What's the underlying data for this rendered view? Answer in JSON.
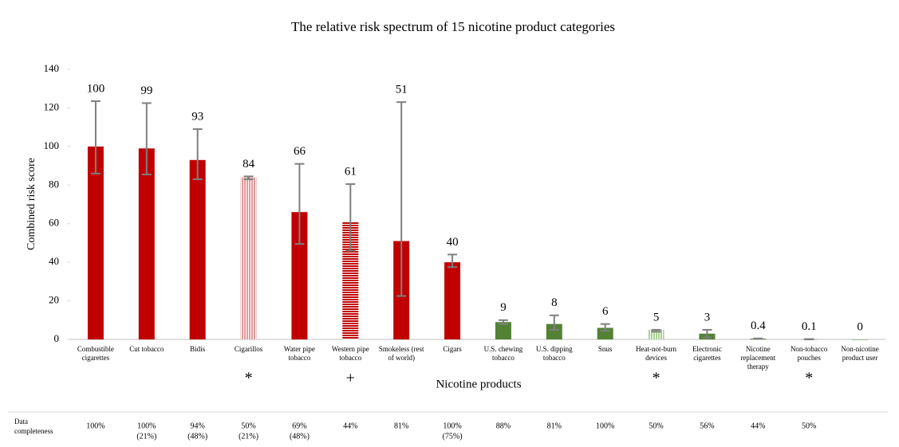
{
  "chart_data": {
    "type": "bar",
    "title": "The relative risk spectrum of 15 nicotine product categories",
    "x_label": "Nicotine products",
    "y_label": "Combined risk score",
    "categories": [
      "Combustible cigarettes",
      "Cut tobacco",
      "Bidis",
      "Cigarillos",
      "Water pipe tobacco",
      "Western pipe tobacco",
      "Smokeless (rest of world)",
      "Cigars",
      "U.S. chewing tobacco",
      "U.S. dipping tobacco",
      "Snus",
      "Heat-not-burn devices",
      "Electronic cigarettes",
      "Nicotine replacement therapy",
      "Non-tobacco pouches",
      "Non-nicotine product user"
    ],
    "values": [
      100,
      99,
      93,
      84,
      66,
      61,
      51,
      40,
      9,
      8,
      6,
      5,
      3,
      0.4,
      0.1,
      0
    ],
    "error_low": [
      86,
      85.5,
      83,
      83,
      49.5,
      46,
      22.5,
      37.5,
      8,
      5,
      4.5,
      4,
      1,
      0.3,
      0,
      null
    ],
    "error_high": [
      123.5,
      122.5,
      109,
      84.5,
      91,
      80.5,
      123,
      44,
      10,
      12.5,
      8,
      5,
      5,
      0.5,
      0.2,
      null
    ],
    "colors": [
      "#c00000",
      "#c00000",
      "#c00000",
      "#e39a9a",
      "#c00000",
      "#c00000",
      "#c00000",
      "#c00000",
      "#548235",
      "#548235",
      "#548235",
      "#a9d18e",
      "#548235",
      "#548235",
      "#548235",
      "#548235"
    ],
    "patterns": [
      "solid",
      "solid",
      "solid",
      "vertical",
      "solid",
      "horizontal",
      "solid",
      "solid",
      "solid",
      "solid",
      "solid",
      "vertical",
      "solid",
      "solid",
      "solid",
      "solid"
    ],
    "markers": [
      null,
      null,
      null,
      "*",
      null,
      "+",
      null,
      null,
      null,
      null,
      null,
      "*",
      null,
      null,
      "*",
      null
    ],
    "error_color": "#7f7f7f",
    "ylim": [
      0,
      140
    ],
    "yticks": [
      0,
      20,
      40,
      60,
      80,
      100,
      120,
      140
    ],
    "completeness_label": "Data completeness",
    "completeness": [
      [
        "100%"
      ],
      [
        "100%",
        "(21%)"
      ],
      [
        "94%",
        "(48%)"
      ],
      [
        "50%",
        "(21%)"
      ],
      [
        "69%",
        "(48%)"
      ],
      [
        "44%"
      ],
      [
        "81%"
      ],
      [
        "100%",
        "(75%)"
      ],
      [
        "88%"
      ],
      [
        "81%"
      ],
      [
        "100%"
      ],
      [
        "50%"
      ],
      [
        "56%"
      ],
      [
        "44%"
      ],
      [
        "50%"
      ],
      null
    ]
  }
}
